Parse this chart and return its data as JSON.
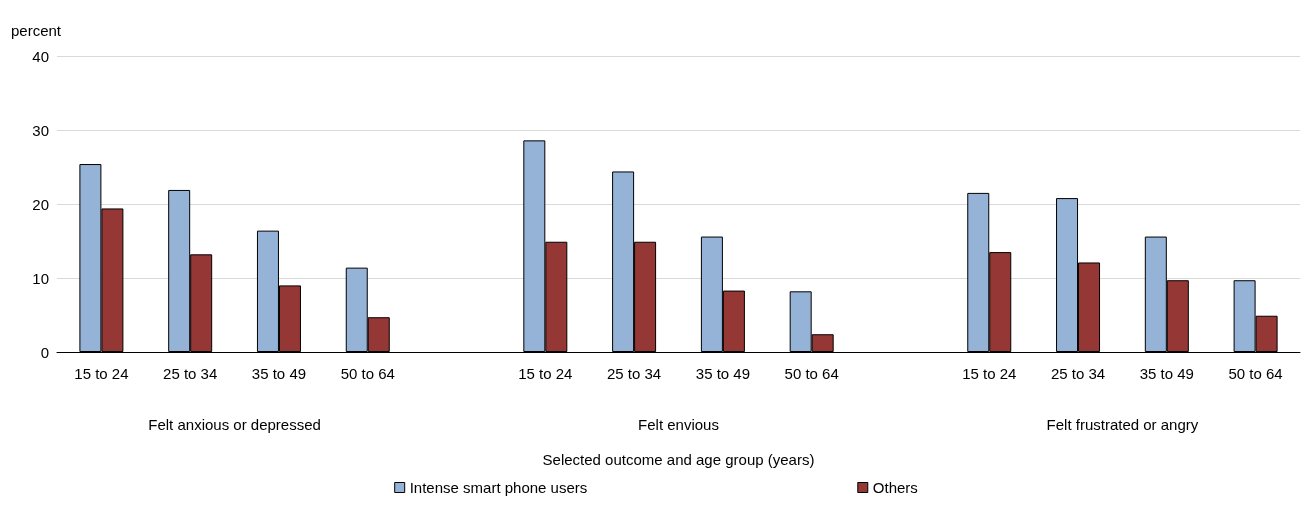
{
  "chart_data": {
    "type": "bar",
    "ylabel": "percent",
    "xlabel": "Selected outcome and age group (years)",
    "categories": [
      "15 to 24",
      "25 to 34",
      "35 to 49",
      "50 to 64",
      null,
      "15 to 24",
      "25 to 34",
      "35 to 49",
      "50 to 64",
      null,
      "15 to 24",
      "25 to 34",
      "35 to 49",
      "50 to 64"
    ],
    "series": [
      {
        "name": "Intense smart phone users",
        "color": "#95b3d7",
        "values": [
          25.4,
          21.9,
          16.4,
          11.4,
          null,
          28.6,
          24.4,
          15.6,
          8.2,
          null,
          21.5,
          20.8,
          15.6,
          9.7
        ]
      },
      {
        "name": "Others",
        "color": "#953735",
        "values": [
          19.4,
          13.2,
          9.0,
          4.7,
          null,
          14.9,
          14.9,
          8.3,
          2.4,
          null,
          13.5,
          12.1,
          9.7,
          4.9
        ]
      }
    ],
    "annotations": [
      "Felt anxious or depressed",
      "Felt envious",
      "Felt frustrated or angry"
    ],
    "ylim": [
      0,
      40
    ],
    "yticks": [
      0,
      10,
      20,
      30,
      40
    ],
    "grid": "y",
    "legend": "bottom"
  }
}
